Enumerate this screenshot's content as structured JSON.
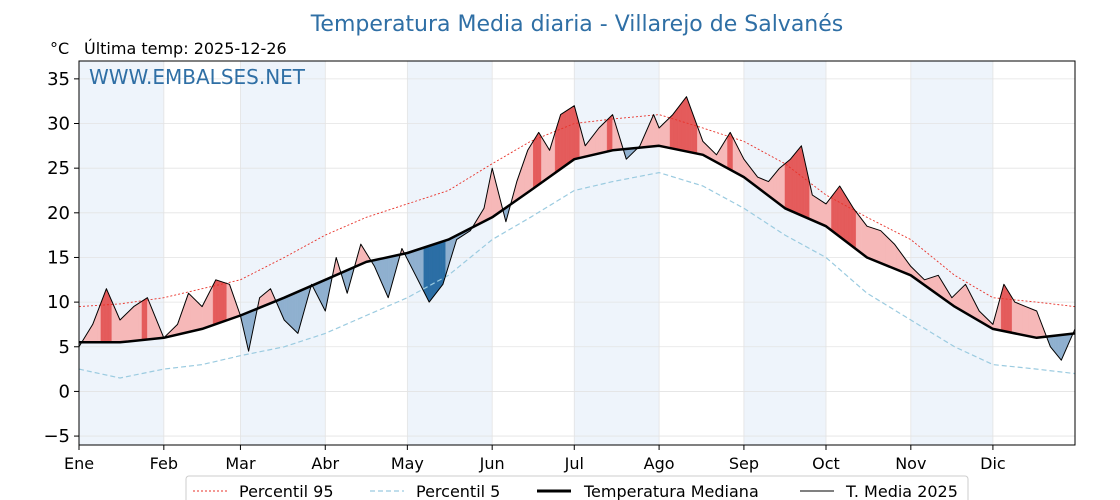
{
  "chart_data": {
    "type": "line",
    "title": "Temperatura Media diaria - Villarejo de Salvanés",
    "unit_label": "°C",
    "last_temp_label": "Última temp: 2025-12-26",
    "watermark": "WWW.EMBALSES.NET",
    "ylim": [
      -6,
      37
    ],
    "y_ticks": [
      -5,
      0,
      5,
      10,
      15,
      20,
      25,
      30,
      35
    ],
    "month_labels": [
      "Ene",
      "Feb",
      "Mar",
      "Abr",
      "May",
      "Jun",
      "Jul",
      "Ago",
      "Sep",
      "Oct",
      "Nov",
      "Dic"
    ],
    "month_start_days": [
      0,
      31,
      59,
      90,
      120,
      151,
      181,
      212,
      243,
      273,
      304,
      334
    ],
    "grid": true,
    "legend_placement": "bottom",
    "colors": {
      "title": "#2f6fa5",
      "p95": "#e8322a",
      "p5": "#9bcbe0",
      "median": "#000000",
      "year": "#000000",
      "above_fill": "#f6b8b8",
      "above_fill_strong": "#e45b5b",
      "below_fill": "#8fb0cf",
      "below_fill_strong": "#2b6ea5",
      "band": "#eef4fb"
    },
    "series": [
      {
        "name": "Percentil 95",
        "key": "p95",
        "x": [
          0,
          15,
          31,
          45,
          59,
          75,
          90,
          105,
          120,
          135,
          151,
          165,
          181,
          195,
          212,
          228,
          243,
          258,
          273,
          288,
          304,
          320,
          334,
          350,
          364
        ],
        "values": [
          9.5,
          9.8,
          10.5,
          11.5,
          12.5,
          15.0,
          17.5,
          19.5,
          21.0,
          22.5,
          25.5,
          28.0,
          30.0,
          30.5,
          31.0,
          29.5,
          28.0,
          25.5,
          22.0,
          19.5,
          17.0,
          13.0,
          10.5,
          10.0,
          9.5
        ]
      },
      {
        "name": "Percentil 5",
        "key": "p5",
        "x": [
          0,
          15,
          31,
          45,
          59,
          75,
          90,
          105,
          120,
          135,
          151,
          165,
          181,
          195,
          212,
          228,
          243,
          258,
          273,
          288,
          304,
          320,
          334,
          350,
          364
        ],
        "values": [
          2.5,
          1.5,
          2.5,
          3.0,
          4.0,
          5.0,
          6.5,
          8.5,
          10.5,
          13.0,
          17.0,
          19.5,
          22.5,
          23.5,
          24.5,
          23.0,
          20.5,
          17.5,
          15.0,
          11.0,
          8.0,
          5.0,
          3.0,
          2.5,
          2.0
        ]
      },
      {
        "name": "Temperatura Mediana",
        "key": "median",
        "x": [
          0,
          15,
          31,
          45,
          59,
          75,
          90,
          105,
          120,
          135,
          151,
          165,
          181,
          195,
          212,
          228,
          243,
          258,
          273,
          288,
          304,
          320,
          334,
          350,
          364
        ],
        "values": [
          5.5,
          5.5,
          6.0,
          7.0,
          8.5,
          10.5,
          12.5,
          14.5,
          15.5,
          17.0,
          19.5,
          22.5,
          26.0,
          27.0,
          27.5,
          26.5,
          24.0,
          20.5,
          18.5,
          15.0,
          13.0,
          9.5,
          7.0,
          6.0,
          6.5
        ]
      },
      {
        "name": "T. Media 2025",
        "key": "year",
        "x": [
          0,
          5,
          10,
          15,
          20,
          25,
          31,
          36,
          40,
          45,
          50,
          55,
          59,
          62,
          66,
          70,
          75,
          80,
          85,
          90,
          94,
          98,
          103,
          108,
          113,
          118,
          123,
          128,
          133,
          138,
          143,
          148,
          151,
          156,
          160,
          164,
          168,
          172,
          176,
          181,
          185,
          190,
          195,
          200,
          205,
          210,
          212,
          217,
          222,
          228,
          233,
          238,
          243,
          248,
          252,
          256,
          260,
          264,
          268,
          273,
          278,
          283,
          288,
          293,
          298,
          304,
          309,
          314,
          319,
          324,
          329,
          334,
          338,
          342,
          346,
          350,
          355,
          359,
          364
        ],
        "values": [
          5.0,
          7.5,
          11.5,
          8.0,
          9.5,
          10.5,
          6.0,
          7.5,
          11.0,
          9.5,
          12.5,
          12.0,
          8.5,
          4.5,
          10.5,
          11.5,
          8.0,
          6.5,
          12.0,
          9.0,
          15.0,
          11.0,
          16.5,
          14.0,
          10.5,
          16.0,
          13.0,
          10.0,
          12.0,
          17.0,
          18.0,
          20.5,
          25.0,
          19.0,
          23.5,
          27.0,
          29.0,
          27.0,
          31.0,
          32.0,
          27.5,
          29.5,
          31.0,
          26.0,
          27.5,
          31.0,
          29.5,
          31.0,
          33.0,
          28.0,
          26.5,
          29.0,
          26.0,
          24.0,
          23.5,
          25.0,
          26.0,
          27.5,
          22.0,
          21.0,
          23.0,
          20.5,
          18.5,
          18.0,
          16.5,
          14.0,
          12.5,
          13.0,
          10.5,
          12.0,
          9.0,
          7.5,
          12.0,
          10.0,
          9.5,
          9.0,
          5.0,
          3.5,
          7.0
        ]
      }
    ]
  }
}
